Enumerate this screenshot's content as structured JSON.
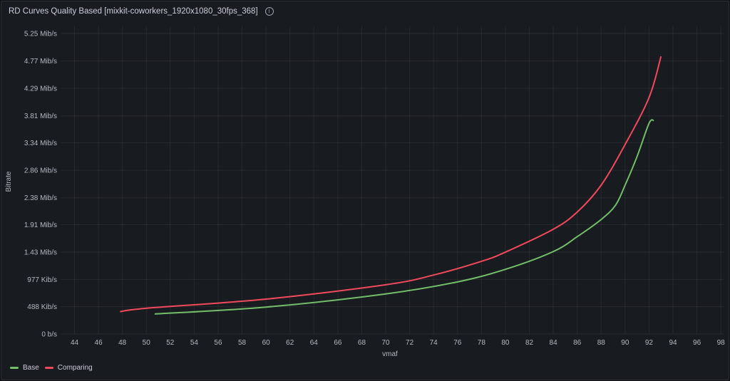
{
  "panel": {
    "title": "RD Curves Quality Based [mixkit-coworkers_1920x1080_30fps_368]",
    "info_icon": "info-circle-icon"
  },
  "chart_data": {
    "type": "line",
    "xlabel": "vmaf",
    "ylabel": "Bitrate",
    "xlim": [
      42,
      99
    ],
    "ylim": [
      0,
      5.25
    ],
    "y_unit": "Mib/s",
    "x_ticks": [
      "44",
      "46",
      "48",
      "50",
      "52",
      "54",
      "56",
      "58",
      "60",
      "62",
      "64",
      "66",
      "68",
      "70",
      "72",
      "74",
      "76",
      "78",
      "80",
      "82",
      "84",
      "86",
      "88",
      "90",
      "92",
      "94",
      "96",
      "98"
    ],
    "y_ticks": [
      {
        "value": 0,
        "label": "0 b/s"
      },
      {
        "value": 0.477,
        "label": "488 Kib/s"
      },
      {
        "value": 0.954,
        "label": "977 Kib/s"
      },
      {
        "value": 1.43,
        "label": "1.43 Mib/s"
      },
      {
        "value": 1.91,
        "label": "1.91 Mib/s"
      },
      {
        "value": 2.38,
        "label": "2.38 Mib/s"
      },
      {
        "value": 2.86,
        "label": "2.86 Mib/s"
      },
      {
        "value": 3.34,
        "label": "3.34 Mib/s"
      },
      {
        "value": 3.81,
        "label": "3.81 Mib/s"
      },
      {
        "value": 4.29,
        "label": "4.29 Mib/s"
      },
      {
        "value": 4.77,
        "label": "4.77 Mib/s"
      },
      {
        "value": 5.25,
        "label": "5.25 Mib/s"
      }
    ],
    "grid": true,
    "legend": "bottom-left",
    "series": [
      {
        "name": "Base",
        "color": "#73bf69",
        "x": [
          50.7,
          60,
          70,
          76,
          80,
          84,
          86,
          88,
          89.2,
          90,
          91,
          92,
          92.4
        ],
        "y": [
          0.35,
          0.47,
          0.7,
          0.91,
          1.13,
          1.44,
          1.7,
          2.0,
          2.25,
          2.6,
          3.1,
          3.68,
          3.73
        ]
      },
      {
        "name": "Comparing",
        "color": "#f2495c",
        "x": [
          47.8,
          50,
          60,
          70,
          74,
          78,
          80,
          84,
          86,
          88,
          90,
          92,
          93
        ],
        "y": [
          0.39,
          0.45,
          0.61,
          0.86,
          1.03,
          1.27,
          1.43,
          1.83,
          2.13,
          2.6,
          3.31,
          4.13,
          4.85
        ]
      }
    ]
  }
}
